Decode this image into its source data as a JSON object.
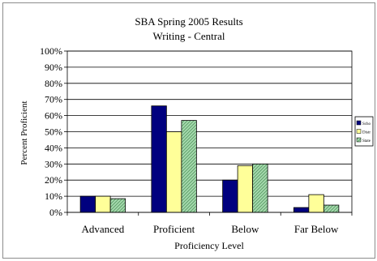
{
  "chart_data": {
    "type": "bar",
    "title": "SBA Spring 2005 Results",
    "subtitle": "Writing - Central",
    "xlabel": "Proficiency Level",
    "ylabel": "Percent Proficient",
    "categories": [
      "Advanced",
      "Proficient",
      "Below",
      "Far Below"
    ],
    "series": [
      {
        "name": "Scho",
        "color": "#00007f",
        "pattern": "solid",
        "values": [
          10,
          66,
          20,
          3
        ]
      },
      {
        "name": "Distr",
        "color": "#ffff99",
        "pattern": "solid",
        "values": [
          10,
          50,
          29,
          11
        ]
      },
      {
        "name": "State",
        "color": "#a8dcb0",
        "pattern": "diagonal-hatch",
        "values": [
          8.5,
          57,
          30,
          4.5
        ]
      }
    ],
    "ylim": [
      0,
      100
    ],
    "y_ticks": [
      "0%",
      "10%",
      "20%",
      "30%",
      "40%",
      "50%",
      "60%",
      "70%",
      "80%",
      "90%",
      "100%"
    ],
    "grid": true,
    "legend_position": "right"
  }
}
